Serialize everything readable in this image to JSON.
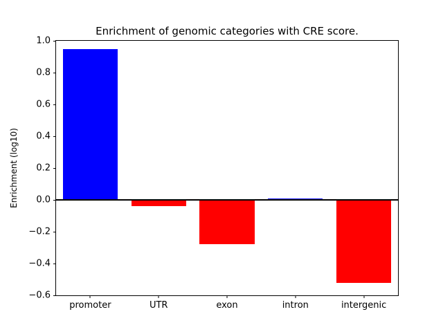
{
  "chart_data": {
    "type": "bar",
    "title": "Enrichment of genomic categories with CRE score.",
    "xlabel": "",
    "ylabel": "Enrichment (log10)",
    "categories": [
      "promoter",
      "UTR",
      "exon",
      "intron",
      "intergenic"
    ],
    "values": [
      0.95,
      -0.04,
      -0.28,
      0.01,
      -0.52
    ],
    "colors": [
      "#0000ff",
      "#ff0000",
      "#ff0000",
      "#0000ff",
      "#ff0000"
    ],
    "positive_color": "#0000ff",
    "negative_color": "#ff0000",
    "ylim": [
      -0.6,
      1.0
    ],
    "yticks": [
      {
        "v": 1.0,
        "label": "1.0"
      },
      {
        "v": 0.8,
        "label": "0.8"
      },
      {
        "v": 0.6,
        "label": "0.6"
      },
      {
        "v": 0.4,
        "label": "0.4"
      },
      {
        "v": 0.2,
        "label": "0.2"
      },
      {
        "v": 0.0,
        "label": "0.0"
      },
      {
        "v": -0.2,
        "label": "−0.2"
      },
      {
        "v": -0.4,
        "label": "−0.4"
      },
      {
        "v": -0.6,
        "label": "−0.6"
      }
    ],
    "zero_line": true,
    "grid": false,
    "legend": null,
    "bar_width_fraction": 0.8
  }
}
